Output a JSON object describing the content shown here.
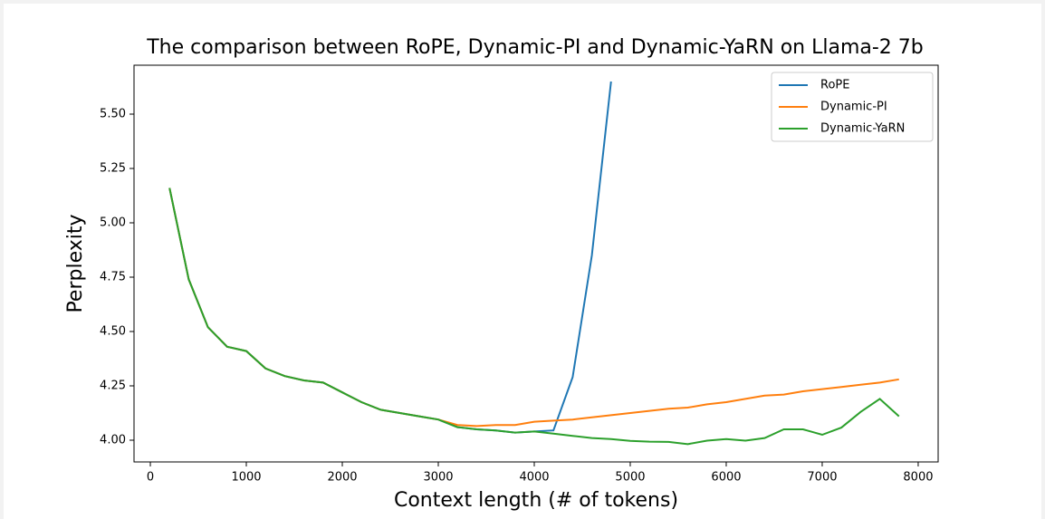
{
  "chart_data": {
    "type": "line",
    "title": "The comparison between RoPE, Dynamic-PI and Dynamic-YaRN on Llama-2 7b",
    "x_label": "Context length (# of tokens)",
    "y_label": "Perplexity",
    "x": [
      200,
      400,
      600,
      800,
      1000,
      1200,
      1400,
      1600,
      1800,
      2000,
      2200,
      2400,
      2600,
      2800,
      3000,
      3200,
      3400,
      3600,
      3800,
      4000,
      4200,
      4400,
      4600,
      4800,
      5000,
      5200,
      5400,
      5600,
      5800,
      6000,
      6200,
      6400,
      6600,
      6800,
      7000,
      7200,
      7400,
      7600,
      7800
    ],
    "series": [
      {
        "name": "RoPE",
        "color": "#1f77b4",
        "values": [
          5.16,
          4.74,
          4.52,
          4.43,
          4.41,
          4.33,
          4.295,
          4.275,
          4.265,
          4.22,
          4.175,
          4.14,
          4.125,
          4.11,
          4.095,
          4.06,
          4.05,
          4.045,
          4.035,
          4.04,
          4.045,
          4.29,
          4.85,
          5.65,
          null,
          null,
          null,
          null,
          null,
          null,
          null,
          null,
          null,
          null,
          null,
          null,
          null,
          null,
          null
        ]
      },
      {
        "name": "Dynamic-PI",
        "color": "#ff7f0e",
        "values": [
          5.16,
          4.74,
          4.52,
          4.43,
          4.41,
          4.33,
          4.295,
          4.275,
          4.265,
          4.22,
          4.175,
          4.14,
          4.125,
          4.11,
          4.095,
          4.07,
          4.065,
          4.07,
          4.07,
          4.085,
          4.09,
          4.095,
          4.105,
          4.115,
          4.125,
          4.135,
          4.145,
          4.15,
          4.165,
          4.175,
          4.19,
          4.205,
          4.21,
          4.225,
          4.235,
          4.245,
          4.255,
          4.265,
          4.28
        ]
      },
      {
        "name": "Dynamic-YaRN",
        "color": "#2ca02c",
        "values": [
          5.16,
          4.74,
          4.52,
          4.43,
          4.41,
          4.33,
          4.295,
          4.275,
          4.265,
          4.22,
          4.175,
          4.14,
          4.125,
          4.11,
          4.095,
          4.06,
          4.05,
          4.045,
          4.035,
          4.04,
          4.03,
          4.02,
          4.01,
          4.005,
          3.997,
          3.993,
          3.992,
          3.982,
          3.998,
          4.005,
          3.998,
          4.01,
          4.05,
          4.05,
          4.025,
          4.058,
          4.13,
          4.19,
          4.11
        ]
      }
    ],
    "xlim": [
      -170,
      8208
    ],
    "ylim": [
      3.9,
      5.725
    ],
    "xticks": [
      0,
      1000,
      2000,
      3000,
      4000,
      5000,
      6000,
      7000,
      8000
    ],
    "yticks": [
      {
        "value": 4,
        "label": "4.00"
      },
      {
        "value": 4.25,
        "label": "4.25"
      },
      {
        "value": 4.5,
        "label": "4.50"
      },
      {
        "value": 4.75,
        "label": "4.75"
      },
      {
        "value": 5,
        "label": "5.00"
      },
      {
        "value": 5.25,
        "label": "5.25"
      },
      {
        "value": 5.5,
        "label": "5.50"
      }
    ],
    "legend": "upper right"
  }
}
